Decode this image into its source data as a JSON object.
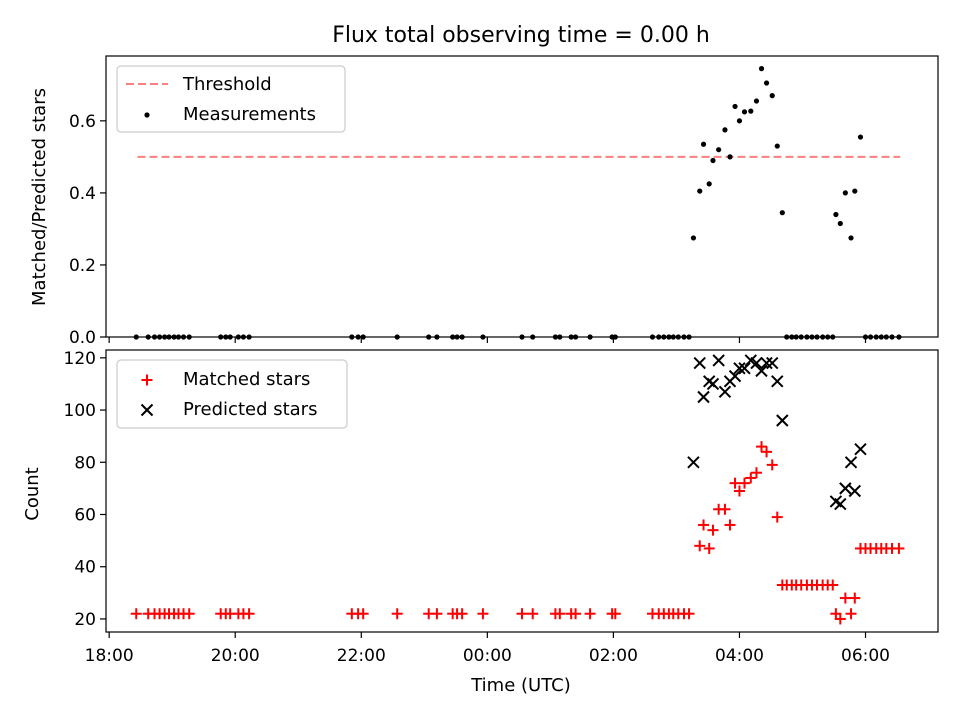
{
  "title": "Flux total observing time = 0.00 h",
  "xlabel": "Time (UTC)",
  "x_ticks": [
    "18:00",
    "20:00",
    "22:00",
    "00:00",
    "02:00",
    "04:00",
    "06:00"
  ],
  "colors": {
    "threshold": "#ff7f7f",
    "measurement": "#000000",
    "matched": "#ff0000",
    "predicted": "#000000"
  },
  "chart_data": [
    {
      "type": "scatter",
      "ylabel": "Matched/Predicted stars",
      "xlim": [
        17.95,
        31.15
      ],
      "ylim": [
        0,
        0.78
      ],
      "y_ticks": [
        "0.0",
        "0.2",
        "0.4",
        "0.6"
      ],
      "legend_position": "top-left",
      "legend": [
        "Threshold",
        "Measurements"
      ],
      "threshold": {
        "name": "Threshold",
        "value": 0.5,
        "x_range": [
          18.45,
          30.55
        ]
      },
      "series": [
        {
          "name": "Measurements",
          "points": [
            [
              18.43,
              0
            ],
            [
              18.62,
              0
            ],
            [
              18.72,
              0
            ],
            [
              18.8,
              0
            ],
            [
              18.88,
              0
            ],
            [
              18.95,
              0
            ],
            [
              19.03,
              0
            ],
            [
              19.1,
              0
            ],
            [
              19.18,
              0
            ],
            [
              19.27,
              0
            ],
            [
              19.77,
              0
            ],
            [
              19.85,
              0
            ],
            [
              19.92,
              0
            ],
            [
              20.05,
              0
            ],
            [
              20.13,
              0
            ],
            [
              20.22,
              0
            ],
            [
              21.85,
              0
            ],
            [
              21.95,
              0
            ],
            [
              22.03,
              0
            ],
            [
              22.57,
              0
            ],
            [
              23.07,
              0
            ],
            [
              23.2,
              0
            ],
            [
              23.45,
              0
            ],
            [
              23.52,
              0
            ],
            [
              23.6,
              0
            ],
            [
              23.93,
              0
            ],
            [
              24.55,
              0
            ],
            [
              24.72,
              0
            ],
            [
              25.08,
              0
            ],
            [
              25.15,
              0
            ],
            [
              25.33,
              0
            ],
            [
              25.4,
              0
            ],
            [
              25.63,
              0
            ],
            [
              25.98,
              0
            ],
            [
              26.03,
              0
            ],
            [
              26.62,
              0
            ],
            [
              26.72,
              0
            ],
            [
              26.8,
              0
            ],
            [
              26.88,
              0
            ],
            [
              26.95,
              0
            ],
            [
              27.03,
              0
            ],
            [
              27.12,
              0
            ],
            [
              27.2,
              0
            ],
            [
              27.27,
              0.275
            ],
            [
              27.37,
              0.405
            ],
            [
              27.43,
              0.535
            ],
            [
              27.52,
              0.425
            ],
            [
              27.58,
              0.49
            ],
            [
              27.67,
              0.52
            ],
            [
              27.77,
              0.575
            ],
            [
              27.85,
              0.5
            ],
            [
              27.93,
              0.64
            ],
            [
              28.0,
              0.6
            ],
            [
              28.08,
              0.625
            ],
            [
              28.18,
              0.627
            ],
            [
              28.27,
              0.655
            ],
            [
              28.35,
              0.745
            ],
            [
              28.43,
              0.705
            ],
            [
              28.52,
              0.67
            ],
            [
              28.6,
              0.53
            ],
            [
              28.68,
              0.345
            ],
            [
              28.75,
              0
            ],
            [
              28.83,
              0
            ],
            [
              28.9,
              0
            ],
            [
              28.98,
              0
            ],
            [
              29.07,
              0
            ],
            [
              29.15,
              0
            ],
            [
              29.23,
              0
            ],
            [
              29.32,
              0
            ],
            [
              29.4,
              0
            ],
            [
              29.48,
              0
            ],
            [
              29.53,
              0.34
            ],
            [
              29.6,
              0.315
            ],
            [
              29.68,
              0.4
            ],
            [
              29.77,
              0.275
            ],
            [
              29.83,
              0.405
            ],
            [
              29.92,
              0.555
            ],
            [
              30.0,
              0
            ],
            [
              30.08,
              0
            ],
            [
              30.17,
              0
            ],
            [
              30.25,
              0
            ],
            [
              30.33,
              0
            ],
            [
              30.42,
              0
            ],
            [
              30.53,
              0
            ]
          ]
        }
      ]
    },
    {
      "type": "scatter",
      "ylabel": "Count",
      "xlim": [
        17.95,
        31.15
      ],
      "ylim": [
        15,
        123
      ],
      "y_ticks": [
        "20",
        "40",
        "60",
        "80",
        "100",
        "120"
      ],
      "legend_position": "top-left",
      "legend": [
        "Matched stars",
        "Predicted stars"
      ],
      "series": [
        {
          "name": "Matched stars",
          "marker": "plus",
          "points": [
            [
              18.43,
              22
            ],
            [
              18.62,
              22
            ],
            [
              18.72,
              22
            ],
            [
              18.8,
              22
            ],
            [
              18.88,
              22
            ],
            [
              18.95,
              22
            ],
            [
              19.03,
              22
            ],
            [
              19.1,
              22
            ],
            [
              19.18,
              22
            ],
            [
              19.27,
              22
            ],
            [
              19.77,
              22
            ],
            [
              19.85,
              22
            ],
            [
              19.92,
              22
            ],
            [
              20.05,
              22
            ],
            [
              20.13,
              22
            ],
            [
              20.22,
              22
            ],
            [
              21.85,
              22
            ],
            [
              21.95,
              22
            ],
            [
              22.03,
              22
            ],
            [
              22.57,
              22
            ],
            [
              23.07,
              22
            ],
            [
              23.2,
              22
            ],
            [
              23.45,
              22
            ],
            [
              23.52,
              22
            ],
            [
              23.6,
              22
            ],
            [
              23.93,
              22
            ],
            [
              24.55,
              22
            ],
            [
              24.72,
              22
            ],
            [
              25.08,
              22
            ],
            [
              25.15,
              22
            ],
            [
              25.33,
              22
            ],
            [
              25.4,
              22
            ],
            [
              25.63,
              22
            ],
            [
              25.98,
              22
            ],
            [
              26.03,
              22
            ],
            [
              26.62,
              22
            ],
            [
              26.72,
              22
            ],
            [
              26.8,
              22
            ],
            [
              26.88,
              22
            ],
            [
              26.95,
              22
            ],
            [
              27.03,
              22
            ],
            [
              27.12,
              22
            ],
            [
              27.2,
              22
            ],
            [
              27.37,
              48
            ],
            [
              27.43,
              56
            ],
            [
              27.52,
              47
            ],
            [
              27.58,
              54
            ],
            [
              27.67,
              62
            ],
            [
              27.77,
              62
            ],
            [
              27.85,
              56
            ],
            [
              27.93,
              72
            ],
            [
              28.0,
              69
            ],
            [
              28.08,
              72
            ],
            [
              28.18,
              74
            ],
            [
              28.27,
              76
            ],
            [
              28.35,
              86
            ],
            [
              28.43,
              84
            ],
            [
              28.52,
              79
            ],
            [
              28.6,
              59
            ],
            [
              28.68,
              33
            ],
            [
              28.75,
              33
            ],
            [
              28.83,
              33
            ],
            [
              28.9,
              33
            ],
            [
              28.98,
              33
            ],
            [
              29.07,
              33
            ],
            [
              29.15,
              33
            ],
            [
              29.23,
              33
            ],
            [
              29.32,
              33
            ],
            [
              29.4,
              33
            ],
            [
              29.48,
              33
            ],
            [
              29.53,
              22
            ],
            [
              29.6,
              20
            ],
            [
              29.68,
              28
            ],
            [
              29.77,
              22
            ],
            [
              29.83,
              28
            ],
            [
              29.92,
              47
            ],
            [
              30.0,
              47
            ],
            [
              30.08,
              47
            ],
            [
              30.17,
              47
            ],
            [
              30.25,
              47
            ],
            [
              30.33,
              47
            ],
            [
              30.42,
              47
            ],
            [
              30.53,
              47
            ]
          ]
        },
        {
          "name": "Predicted stars",
          "marker": "x",
          "points": [
            [
              27.27,
              80
            ],
            [
              27.37,
              118
            ],
            [
              27.43,
              105
            ],
            [
              27.52,
              111
            ],
            [
              27.58,
              110
            ],
            [
              27.67,
              119
            ],
            [
              27.77,
              107
            ],
            [
              27.85,
              111
            ],
            [
              27.93,
              113
            ],
            [
              28.0,
              116
            ],
            [
              28.08,
              116
            ],
            [
              28.18,
              119
            ],
            [
              28.27,
              118
            ],
            [
              28.35,
              115
            ],
            [
              28.43,
              118
            ],
            [
              28.52,
              118
            ],
            [
              28.6,
              111
            ],
            [
              28.68,
              96
            ],
            [
              29.53,
              65
            ],
            [
              29.6,
              64
            ],
            [
              29.68,
              70
            ],
            [
              29.77,
              80
            ],
            [
              29.83,
              69
            ],
            [
              29.92,
              85
            ]
          ]
        }
      ]
    }
  ]
}
